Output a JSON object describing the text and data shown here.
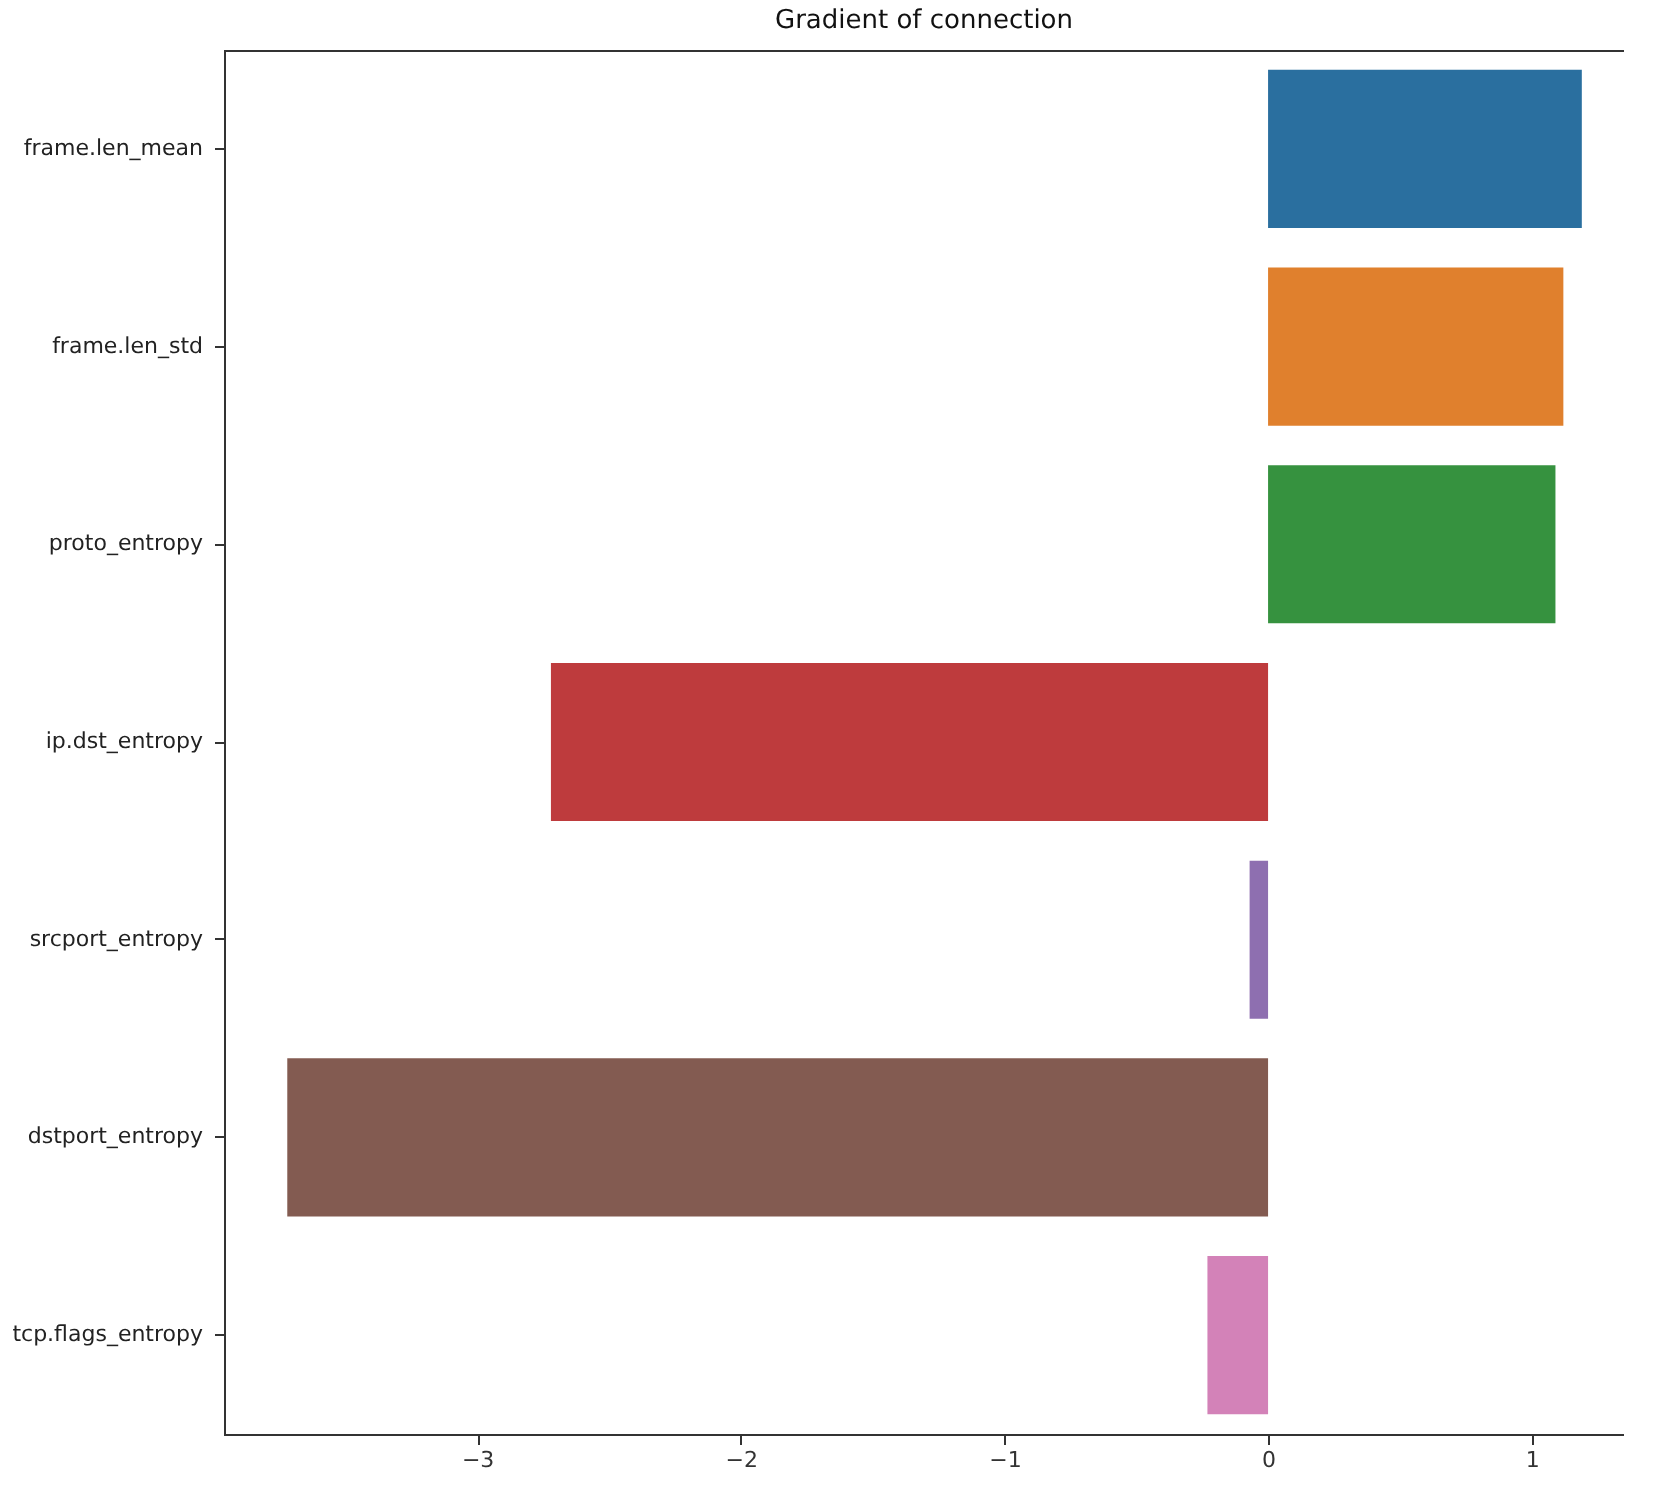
{
  "chart_data": {
    "type": "bar",
    "orientation": "horizontal",
    "title": "Gradient of connection",
    "categories": [
      "frame.len_mean",
      "frame.len_std",
      "proto_entropy",
      "ip.dst_entropy",
      "srcport_entropy",
      "dstport_entropy",
      "tcp.flags_entropy"
    ],
    "values": [
      1.19,
      1.12,
      1.09,
      -2.72,
      -0.07,
      -3.72,
      -0.23
    ],
    "colors": [
      "#2a6f9f",
      "#e0802d",
      "#36923f",
      "#be3b3d",
      "#8e6fb0",
      "#835b51",
      "#d382b8"
    ],
    "xlim": [
      -3.96,
      1.35
    ],
    "xticks": [
      {
        "value": -3,
        "label": "−3"
      },
      {
        "value": -2,
        "label": "−2"
      },
      {
        "value": -1,
        "label": "−1"
      },
      0,
      1
    ],
    "grid": false,
    "legend": false
  }
}
